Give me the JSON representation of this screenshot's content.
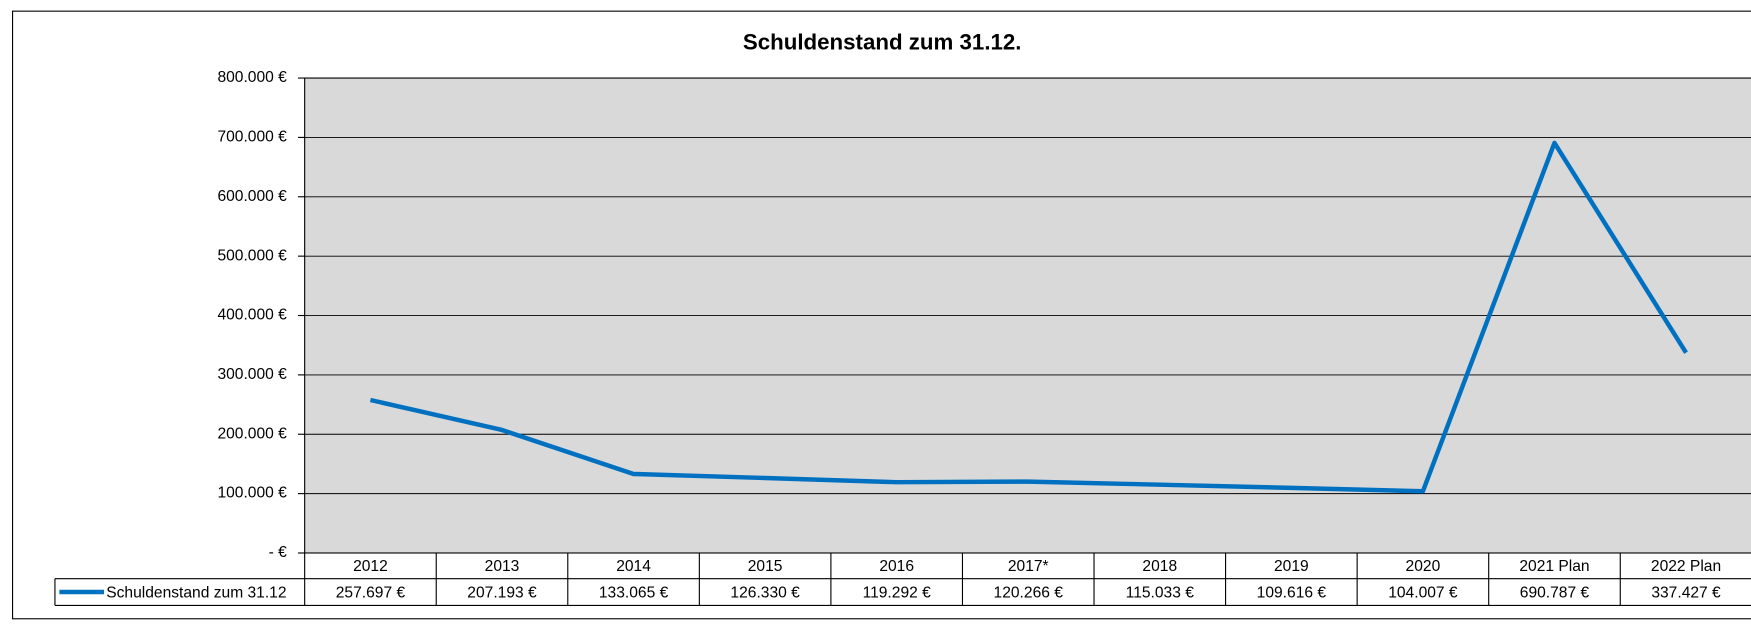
{
  "chart_data": {
    "type": "line",
    "title": "Schuldenstand zum 31.12.",
    "categories": [
      "2012",
      "2013",
      "2014",
      "2015",
      "2016",
      "2017*",
      "2018",
      "2019",
      "2020",
      "2021 Plan",
      "2022 Plan"
    ],
    "series": [
      {
        "name": "Schuldenstand zum 31.12",
        "color": "#0070c0",
        "values": [
          257697,
          207193,
          133065,
          126330,
          119292,
          120266,
          115033,
          109616,
          104007,
          690787,
          337427
        ],
        "value_labels": [
          "257.697 €",
          "207.193 €",
          "133.065 €",
          "126.330 €",
          "119.292 €",
          "120.266 €",
          "115.033 €",
          "109.616 €",
          "104.007 €",
          "690.787 €",
          "337.427 €"
        ]
      }
    ],
    "ylim": [
      0,
      800000
    ],
    "yticks": [
      {
        "value": 0,
        "label": "- €"
      },
      {
        "value": 100000,
        "label": "100.000 €"
      },
      {
        "value": 200000,
        "label": "200.000 €"
      },
      {
        "value": 300000,
        "label": "300.000 €"
      },
      {
        "value": 400000,
        "label": "400.000 €"
      },
      {
        "value": 500000,
        "label": "500.000 €"
      },
      {
        "value": 600000,
        "label": "600.000 €"
      },
      {
        "value": 700000,
        "label": "700.000 €"
      },
      {
        "value": 800000,
        "label": "800.000 €"
      }
    ],
    "grid": true,
    "plot_background": "#d9d9d9"
  }
}
